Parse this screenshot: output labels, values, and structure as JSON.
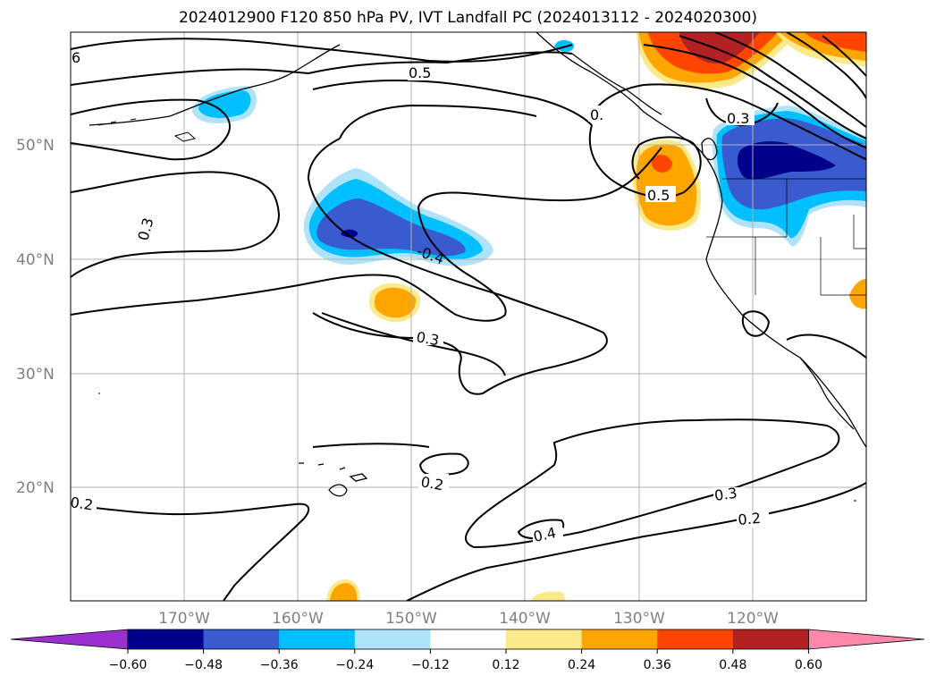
{
  "title": "2024012900 F120 850 hPa PV, IVT Landfall PC (2024013112 - 2024020300)",
  "lat_labels": [
    "50°N",
    "40°N",
    "30°N",
    "20°N"
  ],
  "lon_labels": [
    "170°W",
    "160°W",
    "150°W",
    "140°W",
    "130°W",
    "120°W"
  ],
  "contour_labels": [
    "6",
    "0.5",
    "0.3",
    "0.",
    "0.3",
    "0.5",
    "-0.4",
    "0.3",
    "0.2",
    "0.2",
    "0.3",
    "0.2",
    "0.4"
  ],
  "colorbar": {
    "colors": [
      "#9b30d0",
      "#00008b",
      "#3a5bcf",
      "#00bfff",
      "#aee3fa",
      "#ffffff",
      "#fbe98a",
      "#ffa500",
      "#ff4500",
      "#b22222",
      "#ff88aa"
    ],
    "tick_labels": [
      "−0.60",
      "−0.48",
      "−0.36",
      "−0.24",
      "−0.12",
      "0.12",
      "0.24",
      "0.36",
      "0.48",
      "0.60"
    ]
  }
}
